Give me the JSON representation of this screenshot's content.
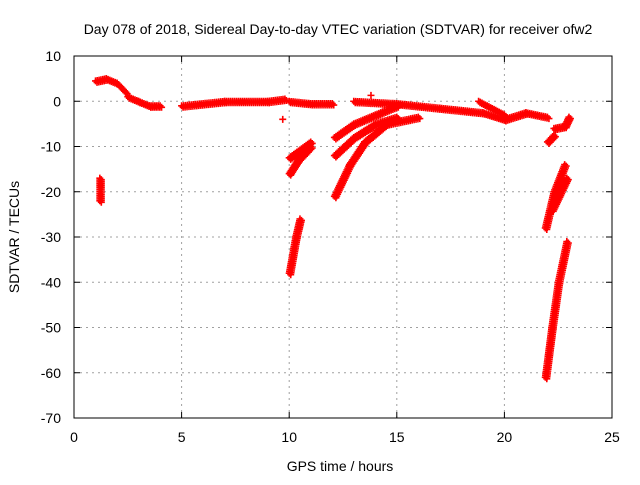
{
  "chart_data": {
    "type": "scatter",
    "title": "Day 078 of 2018, Sidereal Day-to-day VTEC variation (SDTVAR) for receiver ofw2",
    "xlabel": "GPS time / hours",
    "ylabel": "SDTVAR / TECUs",
    "xlim": [
      0,
      25
    ],
    "ylim": [
      -70,
      10
    ],
    "xticks": [
      "0",
      "5",
      "10",
      "15",
      "20",
      "25"
    ],
    "yticks": [
      "10",
      "0",
      "-10",
      "-20",
      "-30",
      "-40",
      "-50",
      "-60",
      "-70"
    ],
    "grid": true,
    "marker": "+",
    "color": "#ff0000",
    "tracks": [
      [
        [
          1.0,
          4.5
        ],
        [
          1.5,
          5.0
        ],
        [
          2.0,
          4.0
        ],
        [
          2.4,
          2.0
        ]
      ],
      [
        [
          1.2,
          -17
        ],
        [
          1.2,
          -22
        ]
      ],
      [
        [
          2.5,
          1.0
        ],
        [
          3.0,
          0.0
        ],
        [
          3.5,
          -1.0
        ],
        [
          4.0,
          -1.0
        ]
      ],
      [
        [
          5.0,
          -1.0
        ],
        [
          7.0,
          0.0
        ],
        [
          9.0,
          0.0
        ],
        [
          9.8,
          0.5
        ]
      ],
      [
        [
          10.0,
          0.0
        ],
        [
          11.0,
          -0.5
        ],
        [
          12.0,
          -0.5
        ]
      ],
      [
        [
          9.7,
          -4
        ],
        [
          9.7,
          -4
        ]
      ],
      [
        [
          10.0,
          -16
        ],
        [
          10.4,
          -13
        ],
        [
          11.0,
          -10
        ]
      ],
      [
        [
          10.0,
          -12.5
        ],
        [
          11.0,
          -9
        ]
      ],
      [
        [
          10.0,
          -38
        ],
        [
          10.3,
          -30
        ],
        [
          10.5,
          -26
        ]
      ],
      [
        [
          12.1,
          -8
        ],
        [
          13.0,
          -5
        ],
        [
          14.0,
          -3
        ],
        [
          15.0,
          -1
        ]
      ],
      [
        [
          12.1,
          -12
        ],
        [
          13.0,
          -8
        ],
        [
          14.0,
          -5
        ],
        [
          15.0,
          -3.5
        ]
      ],
      [
        [
          12.1,
          -21
        ],
        [
          12.8,
          -14
        ],
        [
          13.5,
          -9
        ],
        [
          14.5,
          -5
        ],
        [
          16.0,
          -3.5
        ]
      ],
      [
        [
          13.0,
          0.0
        ],
        [
          15.0,
          -0.5
        ],
        [
          17.0,
          -1.5
        ],
        [
          19.0,
          -2.5
        ],
        [
          20.0,
          -4.0
        ],
        [
          21.0,
          -2.5
        ],
        [
          22.0,
          -3.5
        ]
      ],
      [
        [
          18.8,
          0.0
        ],
        [
          20.0,
          -3.0
        ]
      ],
      [
        [
          22.3,
          -6
        ],
        [
          22.8,
          -5.5
        ],
        [
          23.0,
          -3.5
        ]
      ],
      [
        [
          22.0,
          -9
        ],
        [
          22.3,
          -7.5
        ]
      ],
      [
        [
          21.9,
          -28
        ],
        [
          22.3,
          -20
        ],
        [
          22.8,
          -14
        ]
      ],
      [
        [
          22.2,
          -24
        ],
        [
          22.9,
          -17
        ]
      ],
      [
        [
          21.9,
          -61
        ],
        [
          22.2,
          -50
        ],
        [
          22.5,
          -40
        ],
        [
          22.9,
          -31
        ]
      ],
      [
        [
          13.8,
          1.3
        ],
        [
          13.8,
          1.3
        ]
      ]
    ]
  }
}
